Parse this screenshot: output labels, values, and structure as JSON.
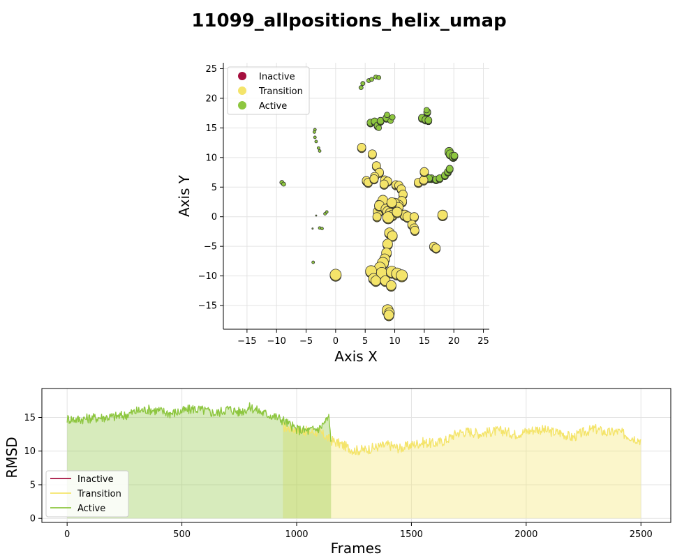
{
  "title": "11099_allpositions_helix_umap",
  "colors": {
    "Inactive": "#a50f3e",
    "Transition": "#f4e46a",
    "Active": "#8dc63f"
  },
  "chart_data": [
    {
      "type": "scatter",
      "xlabel": "Axis X",
      "ylabel": "Axis Y",
      "xlim": [
        -19,
        26
      ],
      "ylim": [
        -19,
        26
      ],
      "xticks": [
        -15,
        -10,
        -5,
        0,
        5,
        10,
        15,
        20,
        25
      ],
      "yticks": [
        -15,
        -10,
        -5,
        0,
        5,
        10,
        15,
        20,
        25
      ],
      "grid": true,
      "legend": {
        "placement": "top-left",
        "entries": [
          "Inactive",
          "Transition",
          "Active"
        ]
      },
      "series": [
        {
          "name": "Active",
          "points": [
            [
              4.3,
              21.8,
              3
            ],
            [
              4.6,
              22.5,
              3
            ],
            [
              5.6,
              23.0,
              3
            ],
            [
              6.1,
              23.2,
              3
            ],
            [
              6.8,
              23.6,
              3
            ],
            [
              7.3,
              23.5,
              3
            ],
            [
              5.9,
              15.9,
              5
            ],
            [
              6.6,
              16.1,
              5
            ],
            [
              7.1,
              15.4,
              5
            ],
            [
              7.6,
              16.2,
              5
            ],
            [
              7.3,
              15.0,
              4
            ],
            [
              8.6,
              16.7,
              5
            ],
            [
              8.7,
              17.2,
              4
            ],
            [
              9.3,
              16.2,
              4
            ],
            [
              9.6,
              16.8,
              4
            ],
            [
              14.6,
              16.7,
              5
            ],
            [
              15.2,
              16.4,
              5
            ],
            [
              15.5,
              17.7,
              5
            ],
            [
              15.7,
              16.3,
              5
            ],
            [
              15.4,
              18.0,
              4
            ],
            [
              -3.5,
              14.7,
              2
            ],
            [
              -3.6,
              14.3,
              2
            ],
            [
              -3.5,
              13.4,
              2
            ],
            [
              -3.3,
              12.7,
              2
            ],
            [
              -2.9,
              11.6,
              2
            ],
            [
              -2.7,
              11.1,
              2
            ],
            [
              -9.1,
              5.8,
              3
            ],
            [
              -8.8,
              5.5,
              3
            ],
            [
              -1.8,
              0.5,
              2
            ],
            [
              -1.5,
              0.8,
              2
            ],
            [
              -3.3,
              0.2,
              1
            ],
            [
              -3.9,
              -2.0,
              1
            ],
            [
              -2.7,
              -1.9,
              2
            ],
            [
              -2.3,
              -2.0,
              2
            ],
            [
              -3.8,
              -7.7,
              2
            ],
            [
              16.2,
              6.5,
              5
            ],
            [
              17.0,
              6.3,
              5
            ],
            [
              17.6,
              6.5,
              5
            ],
            [
              18.5,
              7.0,
              5
            ],
            [
              19.0,
              7.6,
              5
            ],
            [
              19.3,
              8.1,
              5
            ],
            [
              19.2,
              11.0,
              6
            ],
            [
              19.4,
              10.6,
              6
            ],
            [
              19.9,
              10.2,
              6
            ],
            [
              20.1,
              10.3,
              5
            ],
            [
              15.2,
              6.8,
              5
            ],
            [
              15.8,
              6.5,
              5
            ]
          ]
        },
        {
          "name": "Transition",
          "points": [
            [
              4.4,
              11.7,
              6
            ],
            [
              6.2,
              10.6,
              6
            ],
            [
              6.9,
              8.6,
              6
            ],
            [
              7.4,
              7.5,
              6
            ],
            [
              6.6,
              6.8,
              6
            ],
            [
              5.2,
              6.1,
              6
            ],
            [
              5.5,
              5.8,
              6
            ],
            [
              8.3,
              6.2,
              6
            ],
            [
              8.8,
              6.0,
              6
            ],
            [
              6.5,
              6.4,
              6
            ],
            [
              10.2,
              5.4,
              6
            ],
            [
              10.7,
              5.3,
              6
            ],
            [
              11.1,
              4.7,
              6
            ],
            [
              11.4,
              3.8,
              6
            ],
            [
              11.2,
              2.6,
              7
            ],
            [
              10.6,
              2.0,
              7
            ],
            [
              9.7,
              1.8,
              7
            ],
            [
              10.0,
              2.3,
              7
            ],
            [
              8.6,
              2.1,
              7
            ],
            [
              7.6,
              2.0,
              8
            ],
            [
              8.0,
              2.8,
              7
            ],
            [
              7.2,
              0.9,
              7
            ],
            [
              7.4,
              1.9,
              7
            ],
            [
              8.5,
              1.3,
              7
            ],
            [
              8.8,
              0.9,
              7
            ],
            [
              9.2,
              0.6,
              7
            ],
            [
              9.6,
              0.3,
              7
            ],
            [
              10.6,
              1.6,
              7
            ],
            [
              11.7,
              0.3,
              7
            ],
            [
              12.2,
              0.0,
              7
            ],
            [
              8.9,
              -0.1,
              8
            ],
            [
              7.0,
              0.0,
              6
            ],
            [
              13.3,
              0.0,
              6
            ],
            [
              18.1,
              0.3,
              7
            ],
            [
              12.9,
              -1.3,
              6
            ],
            [
              13.3,
              -1.9,
              6
            ],
            [
              13.4,
              -2.3,
              6
            ],
            [
              9.1,
              -2.7,
              7
            ],
            [
              9.6,
              -3.2,
              7
            ],
            [
              8.8,
              -4.6,
              7
            ],
            [
              8.6,
              -6.1,
              7
            ],
            [
              8.3,
              -7.1,
              7
            ],
            [
              8.0,
              -7.8,
              8
            ],
            [
              7.5,
              -8.6,
              8
            ],
            [
              7.8,
              -9.5,
              8
            ],
            [
              9.5,
              -9.3,
              8
            ],
            [
              10.4,
              -9.6,
              8
            ],
            [
              11.2,
              -9.9,
              8
            ],
            [
              6.0,
              -9.2,
              8
            ],
            [
              6.4,
              -10.4,
              7
            ],
            [
              6.8,
              -10.8,
              7
            ],
            [
              8.4,
              -10.8,
              7
            ],
            [
              9.4,
              -11.6,
              7
            ],
            [
              0.0,
              -9.8,
              8
            ],
            [
              8.8,
              -15.8,
              8
            ],
            [
              9.1,
              -16.2,
              7
            ],
            [
              9.0,
              -16.6,
              7
            ],
            [
              14.0,
              5.8,
              6
            ],
            [
              14.9,
              6.2,
              6
            ],
            [
              15.0,
              7.6,
              6
            ],
            [
              16.6,
              -5.0,
              6
            ],
            [
              17.0,
              -5.3,
              6
            ],
            [
              8.2,
              5.5,
              6
            ],
            [
              9.5,
              2.4,
              7
            ],
            [
              10.4,
              0.8,
              7
            ]
          ]
        }
      ]
    },
    {
      "type": "line",
      "xlabel": "Frames",
      "ylabel": "RMSD",
      "xlim": [
        -110,
        2630
      ],
      "ylim": [
        -0.6,
        19.3
      ],
      "xticks": [
        0,
        500,
        1000,
        1500,
        2000,
        2500
      ],
      "yticks": [
        0,
        5,
        10,
        15
      ],
      "grid": true,
      "fill_to_zero": true,
      "legend": {
        "placement": "bottom-left",
        "entries": [
          "Inactive",
          "Transition",
          "Active"
        ]
      },
      "series": [
        {
          "name": "Active",
          "x": [
            0,
            50,
            100,
            150,
            200,
            250,
            300,
            350,
            400,
            450,
            500,
            550,
            600,
            650,
            700,
            750,
            800,
            850,
            900,
            940,
            1000,
            1050,
            1100,
            1140,
            1150
          ],
          "values": [
            14.8,
            14.7,
            14.9,
            15.0,
            15.1,
            15.3,
            15.9,
            16.2,
            16.0,
            15.6,
            15.9,
            16.3,
            16.0,
            15.6,
            16.3,
            15.8,
            16.5,
            15.7,
            15.2,
            14.6,
            13.2,
            13.0,
            13.4,
            15.0,
            11.6
          ]
        },
        {
          "name": "Transition",
          "x": [
            940,
            1000,
            1050,
            1100,
            1150,
            1200,
            1250,
            1300,
            1350,
            1400,
            1450,
            1500,
            1550,
            1600,
            1650,
            1700,
            1750,
            1800,
            1850,
            1900,
            1950,
            2000,
            2050,
            2100,
            2150,
            2200,
            2250,
            2300,
            2350,
            2400,
            2450,
            2500
          ],
          "values": [
            13.6,
            13.2,
            12.9,
            12.8,
            11.6,
            10.9,
            10.1,
            10.2,
            10.6,
            10.9,
            10.4,
            10.9,
            11.3,
            11.1,
            11.6,
            12.7,
            12.9,
            12.6,
            12.9,
            13.0,
            12.5,
            12.9,
            13.3,
            12.9,
            12.7,
            12.0,
            12.8,
            13.3,
            12.7,
            12.9,
            12.2,
            11.6
          ]
        }
      ]
    }
  ]
}
